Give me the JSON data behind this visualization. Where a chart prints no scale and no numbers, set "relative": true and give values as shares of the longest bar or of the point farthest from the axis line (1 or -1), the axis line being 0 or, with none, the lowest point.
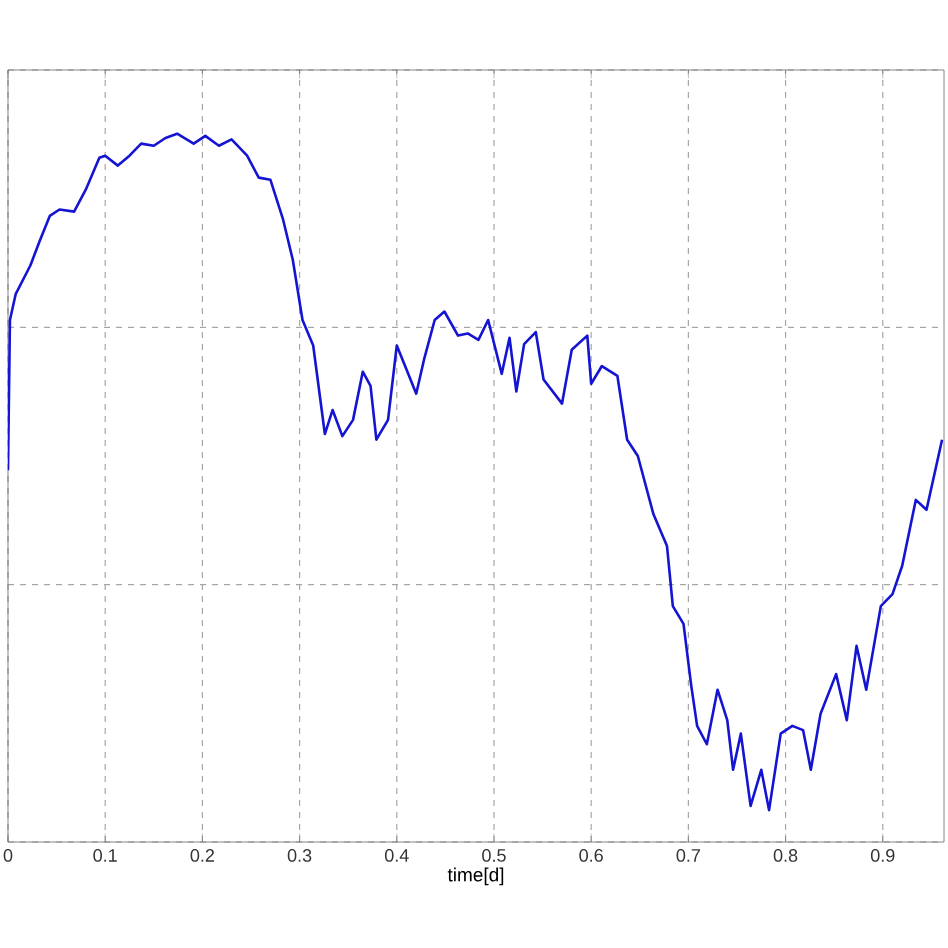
{
  "chart_data": {
    "type": "line",
    "xlabel": "time[d]",
    "relative": true,
    "grid": true,
    "color": "#1414d2",
    "marker": "none",
    "line_style": "solid",
    "xlim": [
      0,
      0.963
    ],
    "xticks": [
      0,
      0.1,
      0.2,
      0.3,
      0.4,
      0.5,
      0.6,
      0.7,
      0.8,
      0.9
    ],
    "x": [
      0,
      0.002,
      0.008,
      0.023,
      0.033,
      0.043,
      0.053,
      0.068,
      0.08,
      0.094,
      0.1,
      0.113,
      0.125,
      0.137,
      0.15,
      0.162,
      0.174,
      0.191,
      0.203,
      0.217,
      0.23,
      0.246,
      0.258,
      0.27,
      0.283,
      0.293,
      0.303,
      0.314,
      0.326,
      0.334,
      0.344,
      0.355,
      0.365,
      0.373,
      0.379,
      0.391,
      0.4,
      0.41,
      0.42,
      0.428,
      0.439,
      0.449,
      0.463,
      0.473,
      0.484,
      0.494,
      0.508,
      0.516,
      0.523,
      0.531,
      0.543,
      0.551,
      0.57,
      0.58,
      0.596,
      0.6,
      0.611,
      0.627,
      0.637,
      0.648,
      0.664,
      0.678,
      0.684,
      0.695,
      0.703,
      0.709,
      0.719,
      0.73,
      0.74,
      0.746,
      0.754,
      0.764,
      0.775,
      0.783,
      0.795,
      0.807,
      0.818,
      0.826,
      0.836,
      0.852,
      0.863,
      0.873,
      0.883,
      0.898,
      0.91,
      0.92,
      0.934,
      0.945,
      0.961
    ],
    "values": [
      0.525,
      0.737,
      0.774,
      0.814,
      0.85,
      0.884,
      0.893,
      0.89,
      0.921,
      0.966,
      0.969,
      0.955,
      0.969,
      0.986,
      0.983,
      0.994,
      1,
      0.986,
      0.997,
      0.983,
      0.992,
      0.969,
      0.938,
      0.935,
      0.879,
      0.822,
      0.737,
      0.701,
      0.576,
      0.61,
      0.573,
      0.596,
      0.664,
      0.644,
      0.568,
      0.596,
      0.701,
      0.667,
      0.633,
      0.681,
      0.737,
      0.749,
      0.715,
      0.718,
      0.709,
      0.737,
      0.661,
      0.712,
      0.636,
      0.703,
      0.72,
      0.653,
      0.619,
      0.695,
      0.715,
      0.647,
      0.672,
      0.658,
      0.568,
      0.545,
      0.463,
      0.418,
      0.333,
      0.308,
      0.22,
      0.164,
      0.138,
      0.215,
      0.172,
      0.102,
      0.153,
      0.051,
      0.102,
      0.045,
      0.153,
      0.164,
      0.158,
      0.102,
      0.181,
      0.237,
      0.172,
      0.277,
      0.215,
      0.333,
      0.35,
      0.39,
      0.483,
      0.469,
      0.568
    ]
  }
}
